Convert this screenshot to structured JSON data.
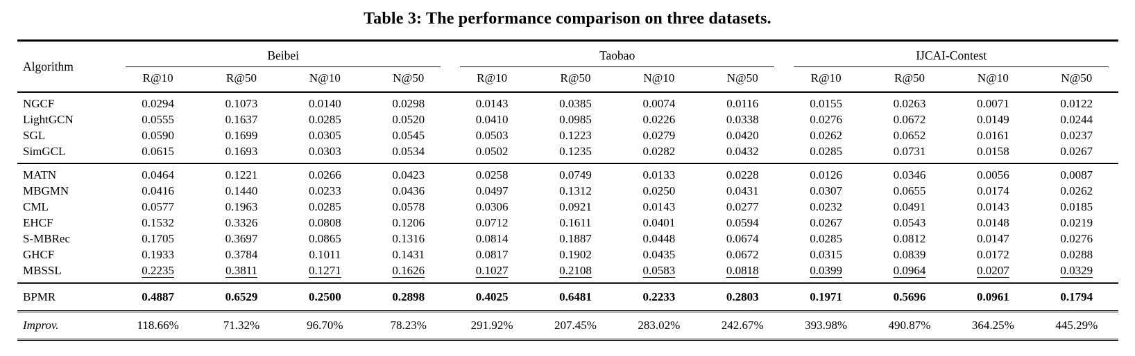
{
  "caption": "Table 3: The performance comparison on three datasets.",
  "table": {
    "algorithm_header": "Algorithm",
    "groups": [
      {
        "label": "Beibei",
        "metrics": [
          "R@10",
          "R@50",
          "N@10",
          "N@50"
        ]
      },
      {
        "label": "Taobao",
        "metrics": [
          "R@10",
          "R@50",
          "N@10",
          "N@50"
        ]
      },
      {
        "label": "IJCAI-Contest",
        "metrics": [
          "R@10",
          "R@50",
          "N@10",
          "N@50"
        ]
      }
    ],
    "sections": [
      {
        "rows": [
          {
            "algorithm": "NGCF",
            "values": [
              "0.0294",
              "0.1073",
              "0.0140",
              "0.0298",
              "0.0143",
              "0.0385",
              "0.0074",
              "0.0116",
              "0.0155",
              "0.0263",
              "0.0071",
              "0.0122"
            ]
          },
          {
            "algorithm": "LightGCN",
            "values": [
              "0.0555",
              "0.1637",
              "0.0285",
              "0.0520",
              "0.0410",
              "0.0985",
              "0.0226",
              "0.0338",
              "0.0276",
              "0.0672",
              "0.0149",
              "0.0244"
            ]
          },
          {
            "algorithm": "SGL",
            "values": [
              "0.0590",
              "0.1699",
              "0.0305",
              "0.0545",
              "0.0503",
              "0.1223",
              "0.0279",
              "0.0420",
              "0.0262",
              "0.0652",
              "0.0161",
              "0.0237"
            ]
          },
          {
            "algorithm": "SimGCL",
            "values": [
              "0.0615",
              "0.1693",
              "0.0303",
              "0.0534",
              "0.0502",
              "0.1235",
              "0.0282",
              "0.0432",
              "0.0285",
              "0.0731",
              "0.0158",
              "0.0267"
            ]
          }
        ]
      },
      {
        "rows": [
          {
            "algorithm": "MATN",
            "values": [
              "0.0464",
              "0.1221",
              "0.0266",
              "0.0423",
              "0.0258",
              "0.0749",
              "0.0133",
              "0.0228",
              "0.0126",
              "0.0346",
              "0.0056",
              "0.0087"
            ]
          },
          {
            "algorithm": "MBGMN",
            "values": [
              "0.0416",
              "0.1440",
              "0.0233",
              "0.0436",
              "0.0497",
              "0.1312",
              "0.0250",
              "0.0431",
              "0.0307",
              "0.0655",
              "0.0174",
              "0.0262"
            ]
          },
          {
            "algorithm": "CML",
            "values": [
              "0.0577",
              "0.1963",
              "0.0285",
              "0.0578",
              "0.0306",
              "0.0921",
              "0.0143",
              "0.0277",
              "0.0232",
              "0.0491",
              "0.0143",
              "0.0185"
            ]
          },
          {
            "algorithm": "EHCF",
            "values": [
              "0.1532",
              "0.3326",
              "0.0808",
              "0.1206",
              "0.0712",
              "0.1611",
              "0.0401",
              "0.0594",
              "0.0267",
              "0.0543",
              "0.0148",
              "0.0219"
            ]
          },
          {
            "algorithm": "S-MBRec",
            "values": [
              "0.1705",
              "0.3697",
              "0.0865",
              "0.1316",
              "0.0814",
              "0.1887",
              "0.0448",
              "0.0674",
              "0.0285",
              "0.0812",
              "0.0147",
              "0.0276"
            ]
          },
          {
            "algorithm": "GHCF",
            "values": [
              "0.1933",
              "0.3784",
              "0.1011",
              "0.1431",
              "0.0817",
              "0.1902",
              "0.0435",
              "0.0672",
              "0.0315",
              "0.0839",
              "0.0172",
              "0.0288"
            ]
          },
          {
            "algorithm": "MBSSL",
            "value_style": "u",
            "values": [
              "0.2235",
              "0.3811",
              "0.1271",
              "0.1626",
              "0.1027",
              "0.2108",
              "0.0583",
              "0.0818",
              "0.0399",
              "0.0964",
              "0.0207",
              "0.0329"
            ]
          }
        ]
      },
      {
        "rows": [
          {
            "algorithm": "BPMR",
            "value_style": "b",
            "values": [
              "0.4887",
              "0.6529",
              "0.2500",
              "0.2898",
              "0.4025",
              "0.6481",
              "0.2233",
              "0.2803",
              "0.1971",
              "0.5696",
              "0.0961",
              "0.1794"
            ]
          }
        ]
      },
      {
        "rows": [
          {
            "algorithm": "Improv.",
            "label_style": "italic",
            "values": [
              "118.66%",
              "71.32%",
              "96.70%",
              "78.23%",
              "291.92%",
              "207.45%",
              "283.02%",
              "242.67%",
              "393.98%",
              "490.87%",
              "364.25%",
              "445.29%"
            ]
          }
        ]
      }
    ]
  }
}
